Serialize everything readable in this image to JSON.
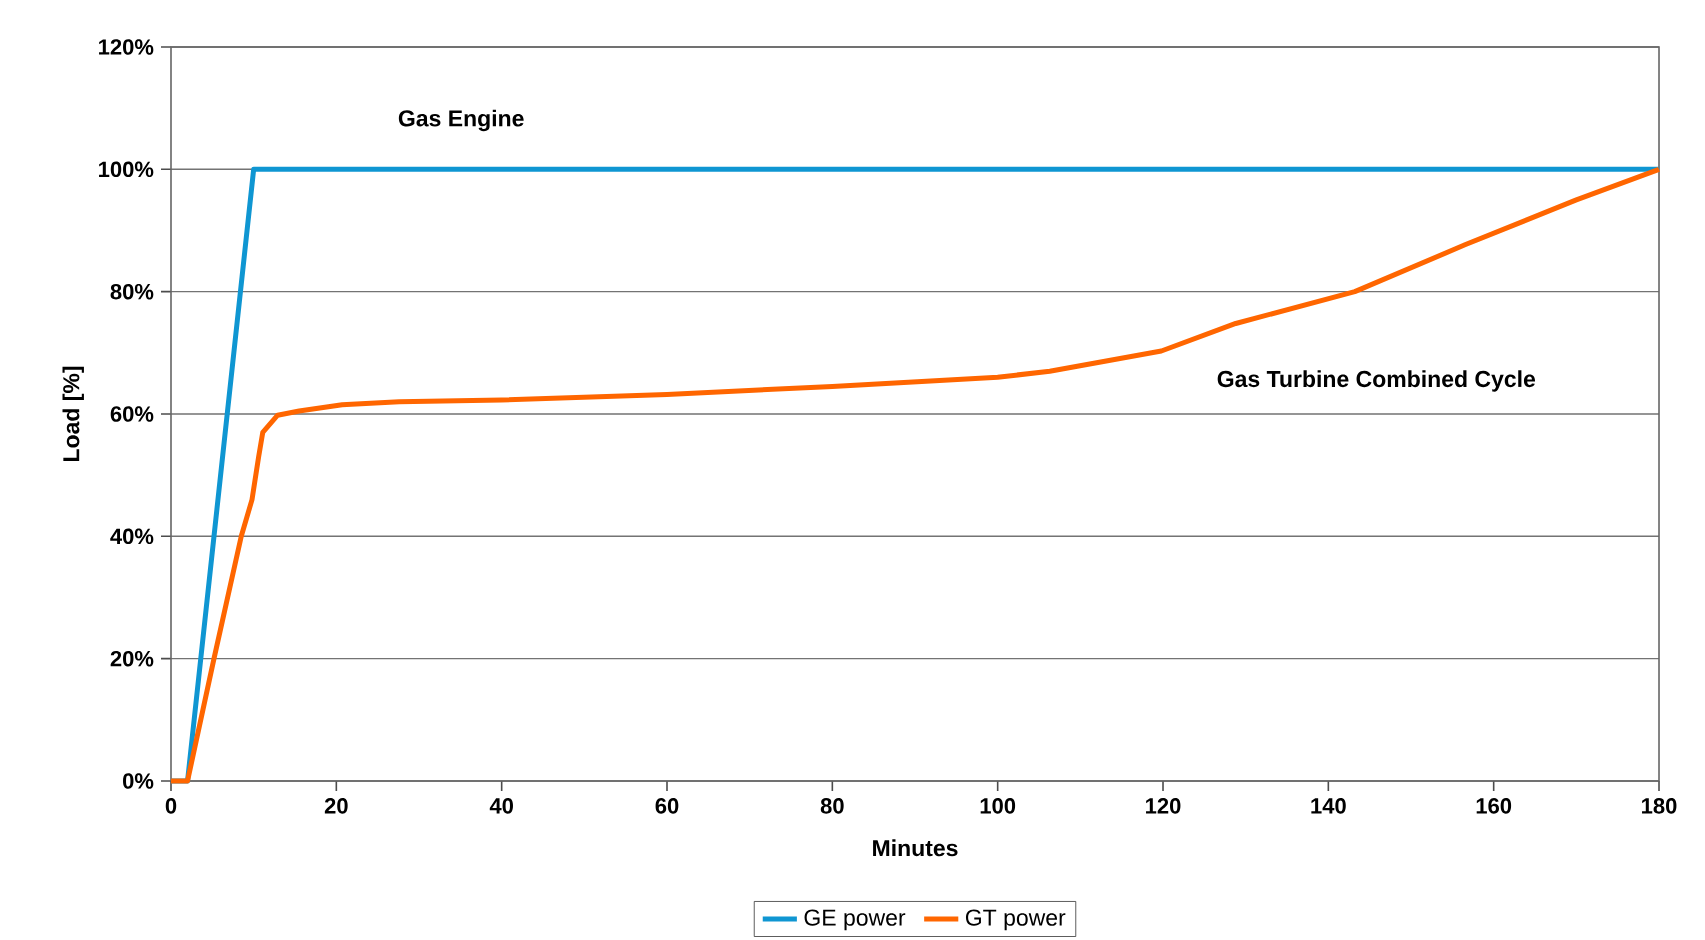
{
  "chart_data": {
    "type": "line",
    "xlabel": "Minutes",
    "ylabel": "Load [%]",
    "xlim": [
      0,
      180
    ],
    "ylim": [
      0,
      120
    ],
    "xticks": [
      0,
      20,
      40,
      60,
      80,
      100,
      120,
      140,
      160,
      180
    ],
    "yticks": [
      {
        "value": 0,
        "label": "0%"
      },
      {
        "value": 20,
        "label": "20%"
      },
      {
        "value": 40,
        "label": "40%"
      },
      {
        "value": 60,
        "label": "60%"
      },
      {
        "value": 80,
        "label": "80%"
      },
      {
        "value": 100,
        "label": "100%"
      },
      {
        "value": 120,
        "label": "120%"
      }
    ],
    "grid": "y",
    "legend": "bottom",
    "marker": "none",
    "line_style": "solid",
    "series": [
      {
        "name": "GE power",
        "color": "#0f96d2",
        "x": [
          0,
          2,
          10,
          180
        ],
        "values": [
          0,
          0,
          100,
          100
        ]
      },
      {
        "name": "GT power",
        "color": "#ff6600",
        "x": [
          0,
          2,
          5.2,
          8.5,
          9.8,
          10.6,
          11.1,
          12.9,
          15.5,
          20.7,
          27.6,
          40,
          60,
          80,
          100,
          106.3,
          119.8,
          128.8,
          143.2,
          156.6,
          170,
          180
        ],
        "values": [
          0,
          0,
          20,
          40,
          46,
          53,
          57,
          59.8,
          60.5,
          61.5,
          62,
          62.3,
          63.2,
          64.5,
          66,
          67,
          70.3,
          74.8,
          80,
          87.7,
          95,
          100
        ]
      }
    ],
    "annotations": [
      "Gas Engine",
      "Gas Turbine Combined Cycle"
    ]
  }
}
